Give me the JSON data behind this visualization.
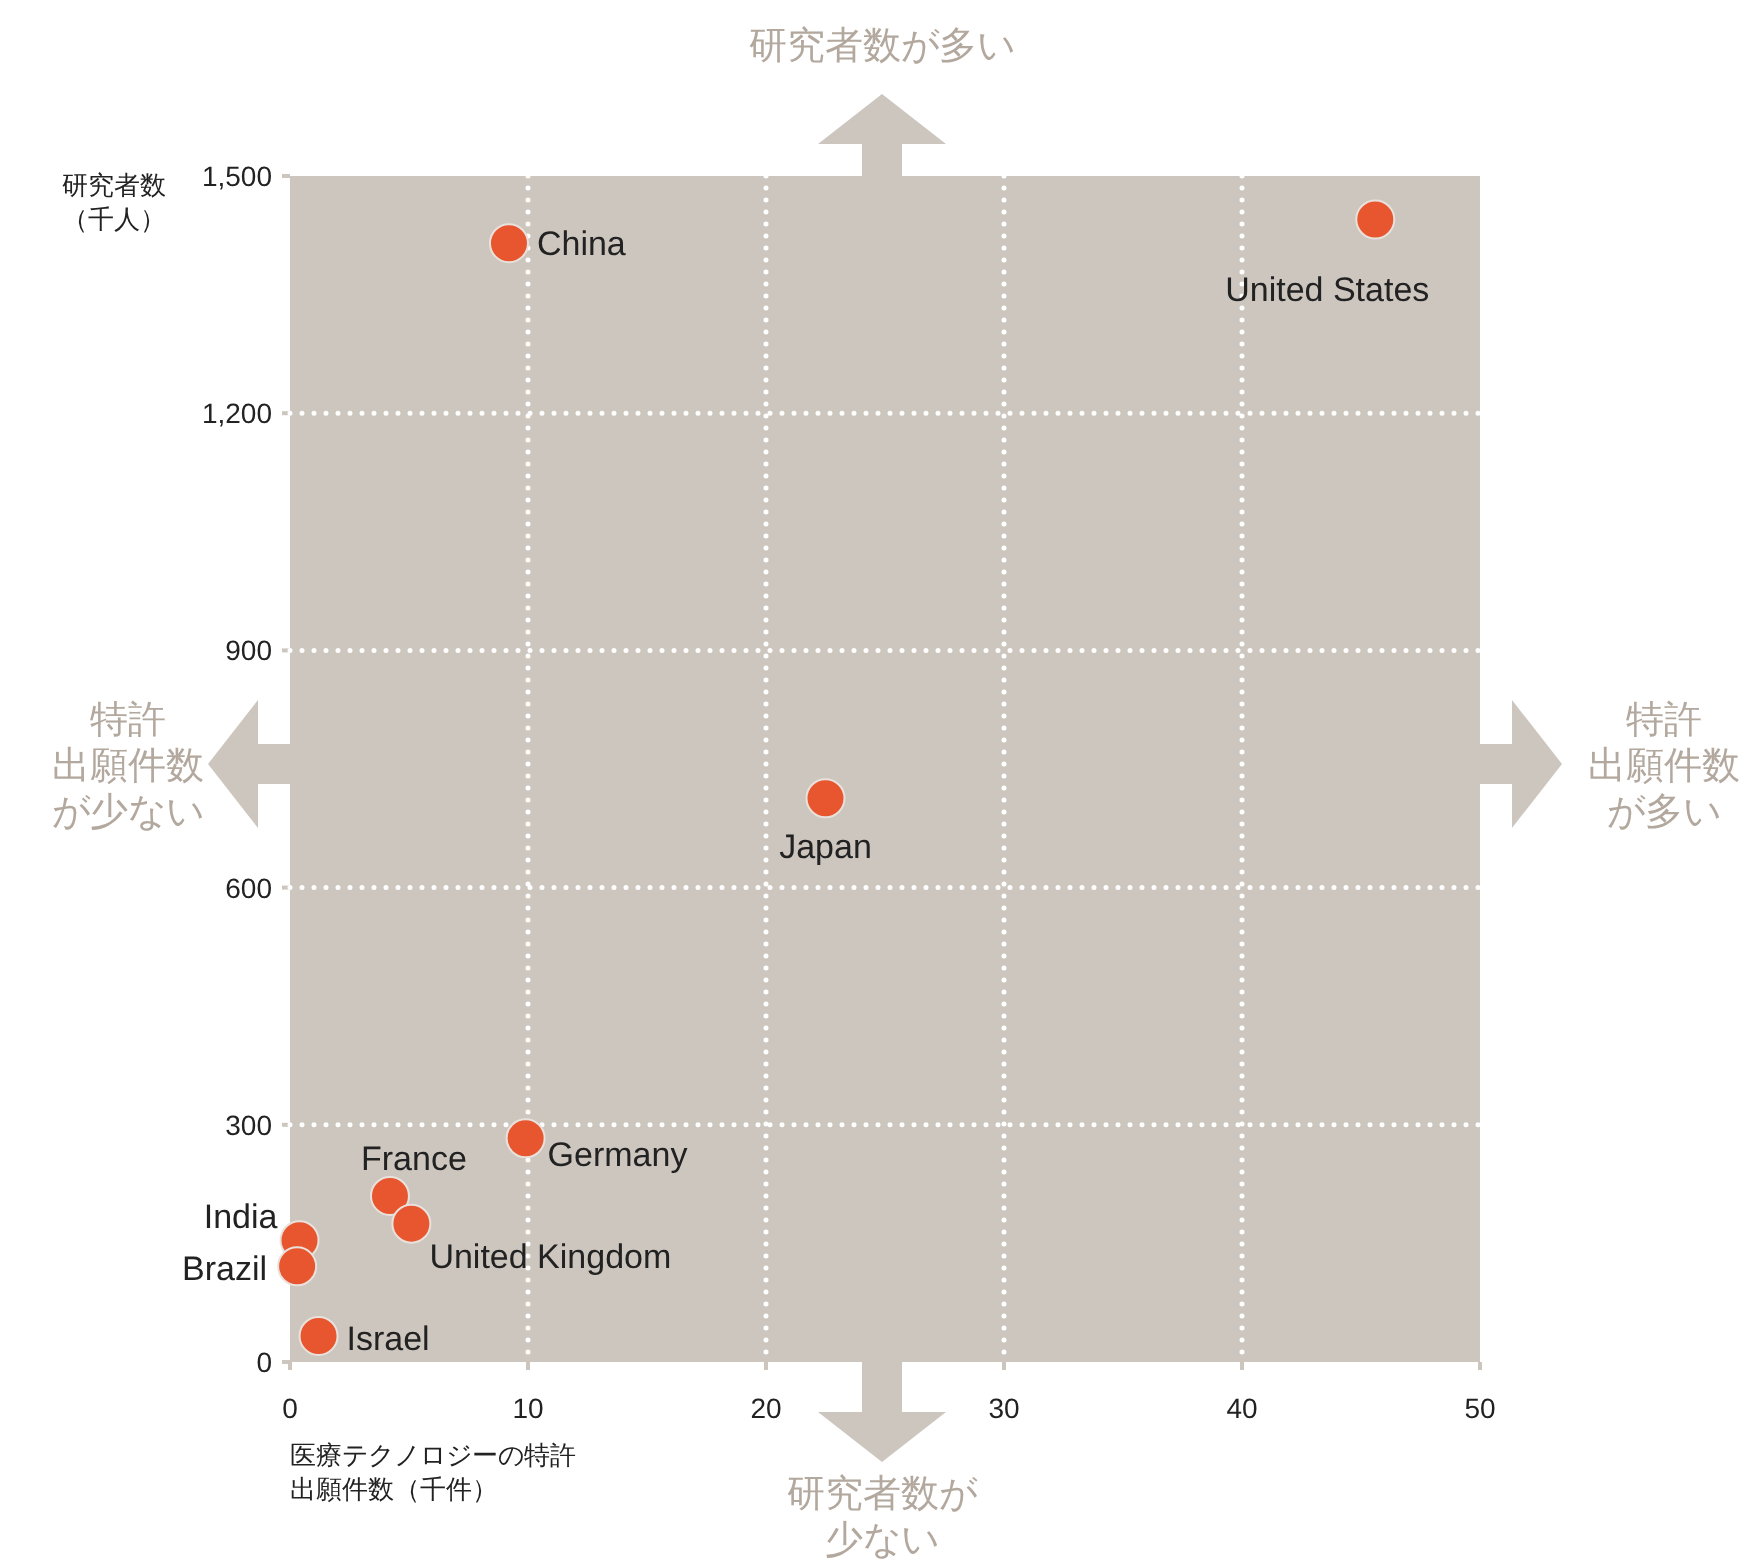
{
  "chart_data": {
    "type": "scatter",
    "xlabel": "医療テクノロジーの特許出願件数（千件）",
    "ylabel": "研究者数（千人）",
    "xlim": [
      0,
      50
    ],
    "xticks": [
      0,
      10,
      20,
      30,
      40,
      50
    ],
    "ylim": [
      0,
      1500
    ],
    "yticks": [
      0,
      300,
      600,
      900,
      {
        "value": 1200,
        "label": "1,200"
      },
      {
        "value": 1500,
        "label": "1,500"
      }
    ],
    "grid": true,
    "marker": "circle",
    "legend": false,
    "series": [
      {
        "name": "China",
        "color": "#e8562f",
        "x": [
          9.2
        ],
        "values": [
          1415
        ]
      },
      {
        "name": "United States",
        "color": "#e8562f",
        "x": [
          45.6
        ],
        "values": [
          1445
        ]
      },
      {
        "name": "Japan",
        "color": "#e8562f",
        "x": [
          22.5
        ],
        "values": [
          713
        ]
      },
      {
        "name": "Germany",
        "color": "#e8562f",
        "x": [
          9.9
        ],
        "values": [
          283
        ]
      },
      {
        "name": "France",
        "color": "#e8562f",
        "x": [
          4.2
        ],
        "values": [
          210
        ]
      },
      {
        "name": "United Kingdom",
        "color": "#e8562f",
        "x": [
          5.1
        ],
        "values": [
          175
        ]
      },
      {
        "name": "India",
        "color": "#e8562f",
        "x": [
          0.4
        ],
        "values": [
          154
        ]
      },
      {
        "name": "Brazil",
        "color": "#e8562f",
        "x": [
          0.3
        ],
        "values": [
          121
        ]
      },
      {
        "name": "Israel",
        "color": "#e8562f",
        "x": [
          1.2
        ],
        "values": [
          33
        ]
      }
    ],
    "annotations": [
      "研究者数が多い",
      "研究者数が少ない",
      "特許出願件数が少ない",
      "特許出願件数が多い"
    ]
  }
}
